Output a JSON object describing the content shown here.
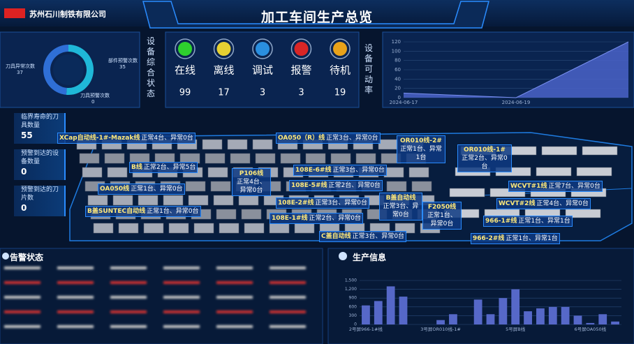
{
  "header": {
    "company": "苏州石川制铁有限公司",
    "title": "加工车间生产总览"
  },
  "status": {
    "title": "设备综合状态",
    "items": [
      {
        "label": "在线",
        "value": 99,
        "color": "#2ed12e"
      },
      {
        "label": "离线",
        "value": 17,
        "color": "#e6d132"
      },
      {
        "label": "调试",
        "value": 3,
        "color": "#2a8fe0"
      },
      {
        "label": "报警",
        "value": 3,
        "color": "#d92626"
      },
      {
        "label": "待机",
        "value": 19,
        "color": "#e8a21a"
      }
    ]
  },
  "sidebar": [
    {
      "label": "临界寿命的刀具数量",
      "value": 55
    },
    {
      "label": "预警到达的设备数量",
      "value": 0
    },
    {
      "label": "预警到达的刀片数",
      "value": 0
    }
  ],
  "zones": [
    {
      "name": "XCap自动线-1#-Mazak线",
      "status": "正常4台、异常0台"
    },
    {
      "name": "OA050（R）线",
      "status": "正常3台、异常0台"
    },
    {
      "name": "OR010线-2#",
      "status": "正常1台、异常1台"
    },
    {
      "name": "OR010线-1#",
      "status": "正常2台、异常0台"
    },
    {
      "name": "B线",
      "status": "正常2台、异常5台"
    },
    {
      "name": "P106线",
      "status": "正常4台、异常0台"
    },
    {
      "name": "108E-6#线",
      "status": "正常3台、异常0台"
    },
    {
      "name": "108E-5#线",
      "status": "正常2台、异常0台"
    },
    {
      "name": "OA050线",
      "status": "正常1台、异常0台"
    },
    {
      "name": "WCVT#1线",
      "status": "正常7台、异常0台"
    },
    {
      "name": "B盖自动线",
      "status": "正常3台、异常0台"
    },
    {
      "name": "108E-2#线",
      "status": "正常3台、异常0台"
    },
    {
      "name": "F2050线",
      "status": "正常1台、异常0台"
    },
    {
      "name": "WCVT#2线",
      "status": "正常4台、异常0台"
    },
    {
      "name": "B盖SUNTEC自动线",
      "status": "正常1台、异常0台"
    },
    {
      "name": "108E-1#线",
      "status": "正常2台、异常0台"
    },
    {
      "name": "966-1#线",
      "status": "正常1台、异常1台"
    },
    {
      "name": "C盖自动线",
      "status": "正常3台、异常0台"
    },
    {
      "name": "966-2#线",
      "status": "正常1台、异常1台"
    }
  ],
  "alarm": {
    "title": "告警状态"
  },
  "chart_data": [
    {
      "type": "pie",
      "categories": [
        "刀具异常次数",
        "部件预警次数",
        "刀具预警次数"
      ],
      "values": [
        37,
        35,
        0
      ],
      "colors": [
        "#1fb8d8",
        "#2f6fd6",
        "#e8c547"
      ]
    },
    {
      "type": "line",
      "title": "设备可动率",
      "categories": [
        "2024-06-17",
        null,
        "2024-06-19",
        null,
        null
      ],
      "values": [
        10,
        5,
        0,
        60,
        120
      ],
      "color": "#4a63c8",
      "ylim": [
        0,
        120
      ],
      "yticks": [
        0,
        20,
        40,
        60,
        80,
        100,
        120
      ],
      "grid": true
    },
    {
      "type": "bar",
      "title": "生产信息",
      "categories": [
        "2号屏966-1#线",
        null,
        null,
        null,
        null,
        null,
        "3号屏OR010线-1#",
        null,
        null,
        null,
        null,
        null,
        "5号屏B线",
        null,
        null,
        null,
        null,
        null,
        "6号屏OA050线",
        null,
        null
      ],
      "values": [
        650,
        800,
        1300,
        950,
        0,
        0,
        150,
        350,
        0,
        850,
        350,
        900,
        1200,
        450,
        550,
        600,
        600,
        300,
        50,
        350,
        100
      ],
      "color": "#5668c8",
      "ylim": [
        0,
        1500
      ],
      "yticks": [
        0,
        300,
        600,
        900,
        {
          "value": 1200,
          "label": "1,200"
        },
        {
          "value": 1500,
          "label": "1,500"
        }
      ],
      "grid": true
    }
  ]
}
